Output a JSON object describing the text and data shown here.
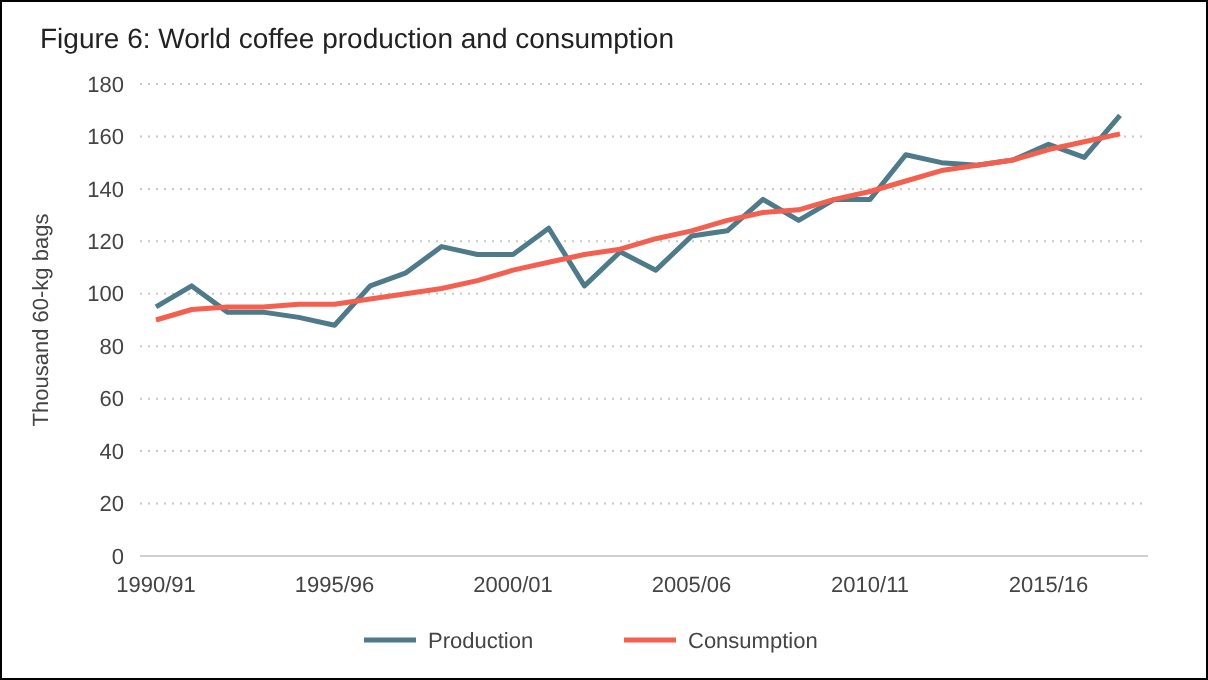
{
  "chart_data": {
    "type": "line",
    "title": "Figure 6: World coffee production  and consumption",
    "ylabel": "Thousand 60-kg bags",
    "categories": [
      "1990/91",
      null,
      null,
      null,
      null,
      "1995/96",
      null,
      null,
      null,
      null,
      "2000/01",
      null,
      null,
      null,
      null,
      "2005/06",
      null,
      null,
      null,
      null,
      "2010/11",
      null,
      null,
      null,
      null,
      "2015/16",
      null,
      null
    ],
    "series": [
      {
        "name": "Production",
        "color": "#4e7a8a",
        "values": [
          95,
          103,
          93,
          93,
          91,
          88,
          103,
          108,
          118,
          115,
          115,
          125,
          103,
          116,
          109,
          122,
          124,
          136,
          128,
          136,
          136,
          153,
          150,
          149,
          151,
          157,
          152,
          168
        ]
      },
      {
        "name": "Consumption",
        "color": "#f4604f",
        "values": [
          90,
          94,
          95,
          95,
          96,
          96,
          98,
          100,
          102,
          105,
          109,
          112,
          115,
          117,
          121,
          124,
          128,
          131,
          132,
          136,
          139,
          143,
          147,
          149,
          151,
          155,
          158,
          161
        ]
      }
    ],
    "ylim": [
      0,
      180
    ],
    "yticks": [
      0,
      20,
      40,
      60,
      80,
      100,
      120,
      140,
      160,
      180
    ],
    "grid": "y",
    "legend": "bottom",
    "line_style": "solid",
    "marker": "none"
  }
}
